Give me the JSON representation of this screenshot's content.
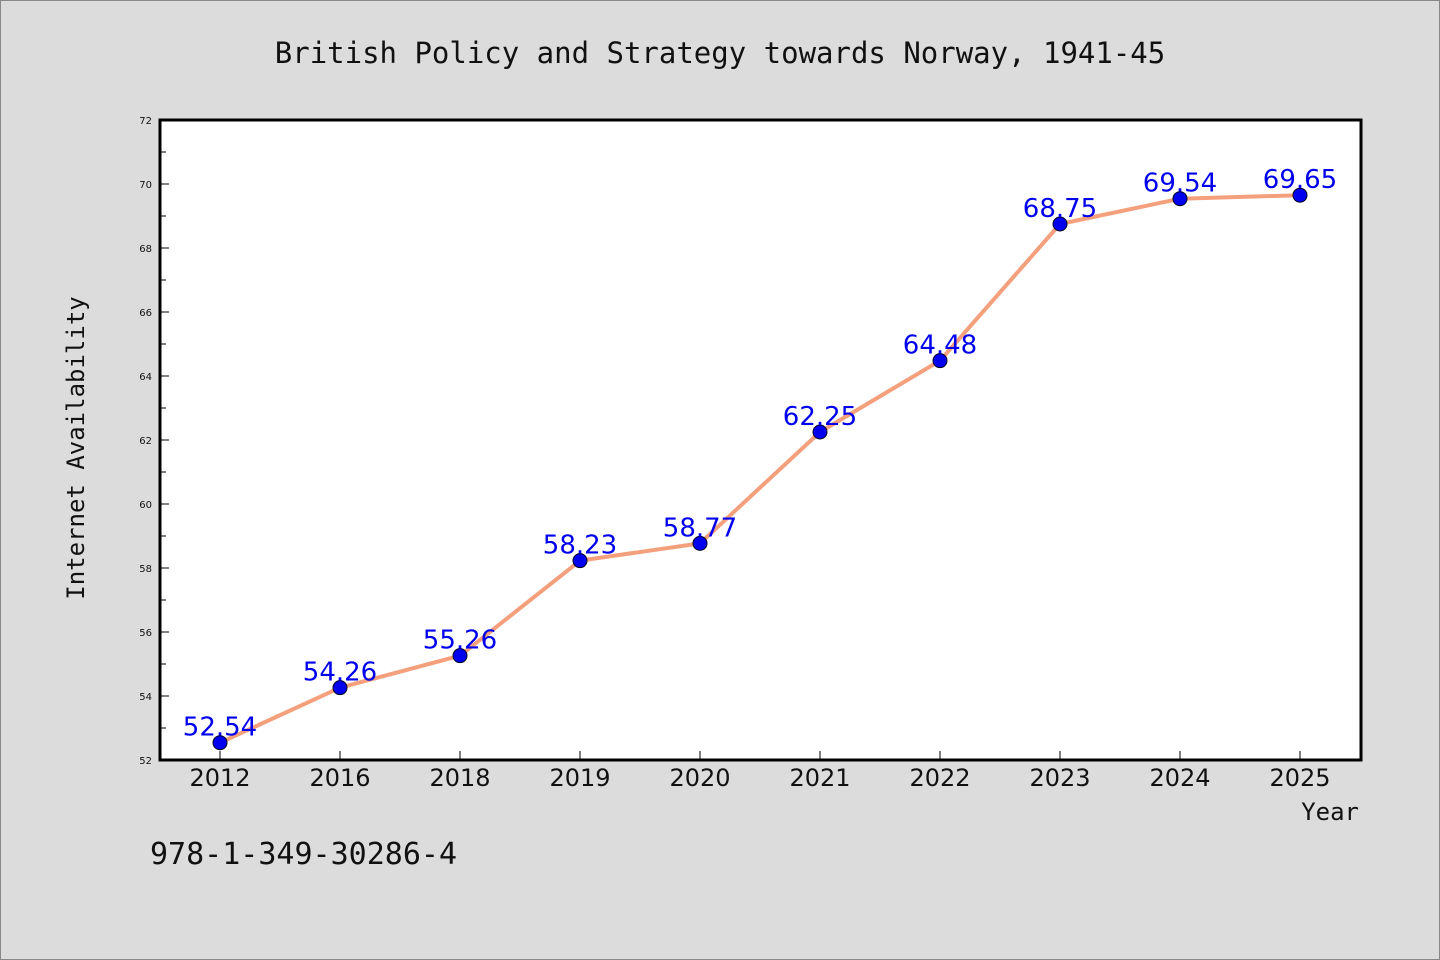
{
  "chart_data": {
    "type": "line",
    "title": "British Policy and Strategy towards Norway, 1941-45",
    "xlabel": "Year",
    "ylabel": "Internet Availability",
    "categories": [
      "2012",
      "2016",
      "2018",
      "2019",
      "2020",
      "2021",
      "2022",
      "2023",
      "2024",
      "2025"
    ],
    "series": [
      {
        "values": [
          52.54,
          54.26,
          55.26,
          58.23,
          58.77,
          62.25,
          64.48,
          68.75,
          69.54,
          69.65
        ],
        "line_color": "#f5a07c",
        "marker_color": "#0000ee"
      }
    ],
    "data_labels": [
      "52.54",
      "54.26",
      "55.26",
      "58.23",
      "58.77",
      "62.25",
      "64.48",
      "68.75",
      "69.54",
      "69.65"
    ],
    "data_label_color": "#0000ee",
    "ylim": [
      52,
      72
    ],
    "yticks": [
      "52",
      "54",
      "56",
      "58",
      "60",
      "62",
      "64",
      "66",
      "68",
      "70",
      "72"
    ],
    "grid": false,
    "legend": "none"
  },
  "footer": {
    "isbn": "978-1-349-30286-4"
  }
}
